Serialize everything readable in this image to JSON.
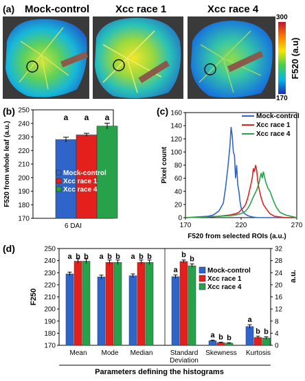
{
  "panel_a": {
    "label": "(a)",
    "titles": [
      "Mock-control",
      "Xcc race 1",
      "Xcc race 4"
    ],
    "colorbar": {
      "max_label": "300",
      "min_label": "170",
      "axis_label": "F520 (a.u)"
    }
  },
  "colors": {
    "mock": "#2f64c9",
    "race1": "#e4201c",
    "race4": "#27a24a"
  },
  "chart_data": [
    {
      "id": "b",
      "panel_label": "(b)",
      "type": "bar",
      "ylabel": "F520 from whole leaf (a.u.)",
      "xlabel": "6 DAI",
      "ylim": [
        170,
        250
      ],
      "yticks": [
        170,
        180,
        190,
        200,
        210,
        220,
        230,
        240,
        250
      ],
      "legend": "inside, lower-left",
      "series": [
        {
          "name": "Mock-control",
          "value": 228,
          "error": 1.8,
          "letter": "a"
        },
        {
          "name": "Xcc race 1",
          "value": 231.5,
          "error": 1.2,
          "letter": "a"
        },
        {
          "name": "Xcc race 4",
          "value": 238,
          "error": 2.2,
          "letter": "a"
        }
      ]
    },
    {
      "id": "c",
      "panel_label": "(c)",
      "type": "line",
      "xlabel": "F520 from selected ROIs (a.u.)",
      "ylabel": "Pixel count",
      "xlim": [
        170,
        270
      ],
      "ylim": [
        0,
        160
      ],
      "xticks": [
        170,
        220,
        270
      ],
      "yticks": [
        0,
        20,
        40,
        60,
        80,
        100,
        120,
        140,
        160
      ],
      "legend": "top-right",
      "series": [
        {
          "name": "Mock-control",
          "x": [
            170,
            180,
            190,
            195,
            200,
            204,
            206,
            208,
            210,
            211,
            212,
            213,
            214,
            215,
            216,
            217,
            218,
            219,
            220,
            222,
            224,
            226,
            228,
            230,
            235,
            240,
            250,
            260,
            270
          ],
          "y": [
            0,
            1,
            2,
            4,
            10,
            22,
            45,
            75,
            110,
            138,
            125,
            100,
            95,
            60,
            80,
            50,
            40,
            25,
            15,
            8,
            5,
            3,
            2,
            1,
            0,
            0,
            0,
            0,
            0
          ]
        },
        {
          "name": "Xcc race 1",
          "x": [
            170,
            190,
            200,
            205,
            210,
            215,
            218,
            220,
            222,
            224,
            226,
            228,
            230,
            231,
            232,
            233,
            234,
            235,
            236,
            238,
            240,
            242,
            244,
            246,
            248,
            250,
            255,
            260,
            270
          ],
          "y": [
            0,
            1,
            2,
            3,
            4,
            6,
            8,
            12,
            15,
            20,
            30,
            45,
            60,
            75,
            70,
            80,
            72,
            55,
            45,
            30,
            20,
            15,
            10,
            6,
            4,
            2,
            1,
            0,
            0
          ]
        },
        {
          "name": "Xcc race 4",
          "x": [
            170,
            190,
            200,
            210,
            215,
            220,
            224,
            226,
            228,
            230,
            232,
            234,
            236,
            237,
            238,
            239,
            240,
            242,
            244,
            246,
            248,
            250,
            252,
            255,
            260,
            265,
            270
          ],
          "y": [
            0,
            1,
            2,
            3,
            4,
            6,
            10,
            14,
            20,
            28,
            35,
            42,
            52,
            60,
            68,
            60,
            70,
            55,
            45,
            40,
            30,
            22,
            15,
            8,
            4,
            2,
            0
          ]
        }
      ]
    },
    {
      "id": "d",
      "panel_label": "(d)",
      "type": "bar",
      "ylabel": "F250",
      "ylabel_right": "a.u.",
      "xlabel": "Parameters defining the histograms",
      "ylim": [
        170,
        250
      ],
      "yticks": [
        170,
        180,
        190,
        200,
        210,
        220,
        230,
        240,
        250
      ],
      "ylim_right": [
        0,
        32
      ],
      "yticks_right": [
        0,
        4,
        8,
        12,
        16,
        20,
        24,
        28,
        32
      ],
      "categories": [
        "Mean",
        "Mode",
        "Median",
        "Standard Deviation",
        "Skewness",
        "Kurtosis"
      ],
      "legend": "top-right",
      "series": [
        {
          "name": "Mock-control",
          "values": [
            229,
            226.5,
            227.5,
            22.7,
            1.5,
            6.2
          ],
          "errors": [
            1.5,
            1.5,
            1.5,
            0.6,
            0.2,
            0.6
          ],
          "letters": [
            "a",
            "a",
            "a",
            "a",
            "a",
            "a"
          ]
        },
        {
          "name": "Xcc race 1",
          "values": [
            239.5,
            238.5,
            238.5,
            27.7,
            0.9,
            2.6
          ],
          "errors": [
            2,
            2,
            2,
            0.5,
            0.15,
            0.4
          ],
          "letters": [
            "b",
            "b",
            "b",
            "b",
            "b",
            "b"
          ]
        },
        {
          "name": "Xcc race 4",
          "values": [
            239.5,
            238.5,
            238.5,
            26.3,
            0.7,
            2.4
          ],
          "errors": [
            2,
            2,
            2,
            0.6,
            0.15,
            0.4
          ],
          "letters": [
            "b",
            "b",
            "b",
            "b",
            "b",
            "b"
          ]
        }
      ]
    }
  ]
}
